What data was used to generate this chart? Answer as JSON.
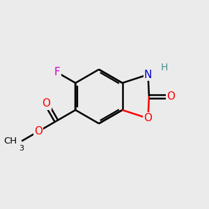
{
  "background_color": "#ebebeb",
  "bond_color": "#000000",
  "bond_width": 1.8,
  "atom_colors": {
    "F": "#cc00cc",
    "O": "#ff0000",
    "N": "#0000cc",
    "H": "#4a9090",
    "C": "#000000"
  },
  "font_size": 11,
  "figsize": [
    3.0,
    3.0
  ],
  "dpi": 100
}
